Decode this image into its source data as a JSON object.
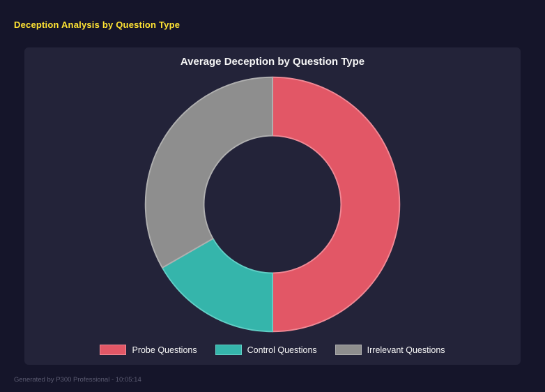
{
  "page": {
    "title": "Deception Analysis by Question Type",
    "footer": "Generated by P300 Professional - 10:05:14"
  },
  "chart_data": {
    "type": "pie",
    "subtype": "donut",
    "title": "Average Deception by Question Type",
    "categories": [
      "Probe Questions",
      "Control Questions",
      "Irrelevant Questions"
    ],
    "values": [
      50,
      16.7,
      33.3
    ],
    "unit": "percent",
    "colors": [
      "#e25766",
      "#35b5ab",
      "#8e8e8e"
    ],
    "border_colors": [
      "#f08a96",
      "#62cfc6",
      "#b0b0b0"
    ],
    "donut_hole_ratio": 0.54,
    "start_angle_deg": 0,
    "legend_position": "bottom",
    "grid": false
  },
  "colors": {
    "page_bg": "#15152a",
    "panel_bg": "#232339",
    "accent_yellow": "#ffe333",
    "text_light": "#f5f5f5",
    "footer_text": "#5c5c72"
  }
}
